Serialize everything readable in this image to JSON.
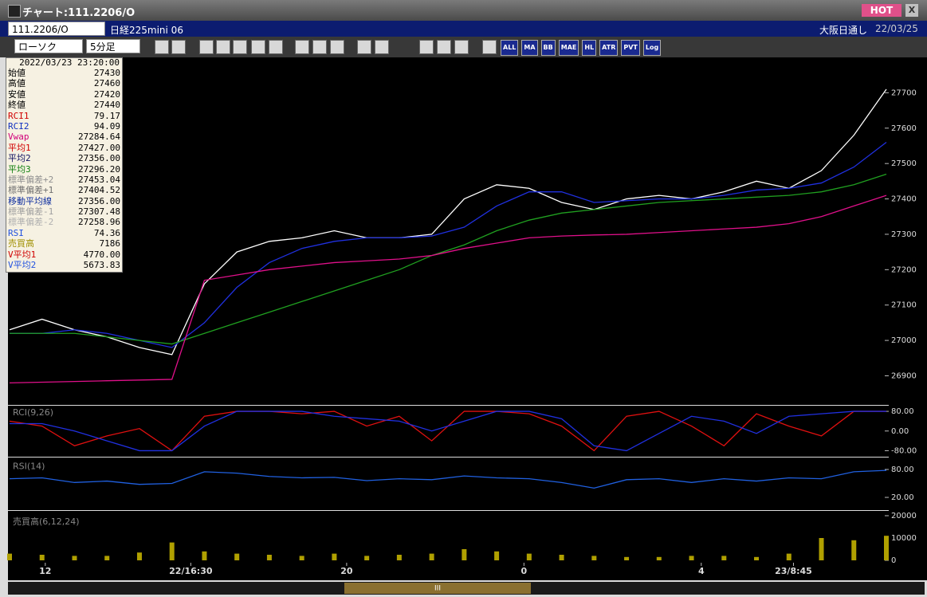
{
  "window": {
    "title": "チャート:111.2206/O",
    "badge": "HOT",
    "close": "X"
  },
  "header": {
    "code": "111.2206/O",
    "name": "日経225mini 06",
    "session": "大阪日通し",
    "date": "22/03/25"
  },
  "toolbar": {
    "chart_style": "ローソク",
    "interval": "5分足",
    "icons": [
      "ALL",
      "MA",
      "BB",
      "MAE",
      "HL",
      "ATR",
      "PVT",
      "Log"
    ]
  },
  "info_panel": {
    "datetime": "2022/03/23 23:20:00",
    "rows": [
      {
        "label": "始値",
        "value": "27430",
        "color": "#000000"
      },
      {
        "label": "高値",
        "value": "27460",
        "color": "#000000"
      },
      {
        "label": "安値",
        "value": "27420",
        "color": "#000000"
      },
      {
        "label": "終値",
        "value": "27440",
        "color": "#000000"
      },
      {
        "label": "RCI1",
        "value": "79.17",
        "color": "#d00000"
      },
      {
        "label": "RCI2",
        "value": "94.09",
        "color": "#1030c0"
      },
      {
        "label": "Vwap",
        "value": "27284.64",
        "color": "#d0007a"
      },
      {
        "label": "平均1",
        "value": "27427.00",
        "color": "#d00000"
      },
      {
        "label": "平均2",
        "value": "27356.00",
        "color": "#101060"
      },
      {
        "label": "平均3",
        "value": "27296.20",
        "color": "#108010"
      },
      {
        "label": "標準偏差+2",
        "value": "27453.04",
        "color": "#909090"
      },
      {
        "label": "標準偏差+1",
        "value": "27404.52",
        "color": "#707070"
      },
      {
        "label": "移動平均線",
        "value": "27356.00",
        "color": "#1030a0"
      },
      {
        "label": "標準偏差-1",
        "value": "27307.48",
        "color": "#a0a0a0"
      },
      {
        "label": "標準偏差-2",
        "value": "27258.96",
        "color": "#b0b0b0"
      },
      {
        "label": "RSI",
        "value": "74.36",
        "color": "#2050e0"
      },
      {
        "label": "売買高",
        "value": "7186",
        "color": "#a09000"
      },
      {
        "label": "V平均1",
        "value": "4770.00",
        "color": "#d00000"
      },
      {
        "label": "V平均2",
        "value": "5673.83",
        "color": "#2050e0"
      }
    ]
  },
  "chart_data": [
    {
      "type": "line",
      "x": [
        0,
        1,
        2,
        3,
        4,
        5,
        6,
        7,
        8,
        9,
        10,
        11,
        12,
        13,
        14,
        15,
        16,
        17,
        18,
        19,
        20,
        21,
        22,
        23,
        24,
        25,
        26,
        27
      ],
      "xlim": [
        0,
        27
      ],
      "ylim": [
        26820,
        27800
      ],
      "yticks": [
        26900,
        27000,
        27100,
        27200,
        27300,
        27400,
        27500,
        27600,
        27700
      ],
      "series": [
        {
          "color": "#ffffff",
          "values": [
            27030,
            27060,
            27030,
            27010,
            26980,
            26960,
            27160,
            27250,
            27280,
            27290,
            27310,
            27290,
            27290,
            27300,
            27400,
            27440,
            27430,
            27390,
            27370,
            27400,
            27410,
            27400,
            27420,
            27450,
            27430,
            27480,
            27580,
            27710
          ]
        },
        {
          "color": "#2030e0",
          "values": [
            27020,
            27020,
            27030,
            27020,
            27000,
            26980,
            27050,
            27150,
            27220,
            27260,
            27280,
            27290,
            27290,
            27295,
            27320,
            27380,
            27420,
            27420,
            27390,
            27395,
            27400,
            27400,
            27410,
            27425,
            27430,
            27445,
            27490,
            27560
          ]
        },
        {
          "color": "#20a020",
          "values": [
            27020,
            27020,
            27020,
            27010,
            27000,
            26990,
            27020,
            27050,
            27080,
            27110,
            27140,
            27170,
            27200,
            27240,
            27270,
            27310,
            27340,
            27360,
            27370,
            27380,
            27390,
            27395,
            27400,
            27405,
            27410,
            27420,
            27440,
            27470
          ]
        },
        {
          "color": "#e0108a",
          "values": [
            26880,
            26882,
            26884,
            26886,
            26888,
            26890,
            27170,
            27185,
            27200,
            27210,
            27220,
            27225,
            27230,
            27240,
            27260,
            27275,
            27290,
            27295,
            27298,
            27300,
            27305,
            27310,
            27315,
            27320,
            27330,
            27350,
            27380,
            27410
          ]
        }
      ]
    },
    {
      "type": "line",
      "title": "RCI(9,26)",
      "x": [
        0,
        1,
        2,
        3,
        4,
        5,
        6,
        7,
        8,
        9,
        10,
        11,
        12,
        13,
        14,
        15,
        16,
        17,
        18,
        19,
        20,
        21,
        22,
        23,
        24,
        25,
        26,
        27
      ],
      "xlim": [
        0,
        27
      ],
      "ylim": [
        -100,
        100
      ],
      "yticks": [
        {
          "value": 80,
          "label": "80.00"
        },
        {
          "value": 0,
          "label": "0.00"
        },
        {
          "value": -80,
          "label": "-80.00"
        }
      ],
      "series": [
        {
          "color": "#e01010",
          "values": [
            40,
            20,
            -60,
            -20,
            10,
            -80,
            60,
            80,
            80,
            70,
            80,
            20,
            60,
            -40,
            80,
            80,
            70,
            20,
            -80,
            60,
            80,
            20,
            -60,
            70,
            20,
            -20,
            80,
            80
          ]
        },
        {
          "color": "#2030e0",
          "values": [
            30,
            30,
            0,
            -40,
            -80,
            -80,
            20,
            80,
            80,
            80,
            60,
            50,
            40,
            0,
            40,
            80,
            80,
            50,
            -60,
            -80,
            -10,
            60,
            40,
            -10,
            60,
            70,
            80,
            80
          ]
        }
      ]
    },
    {
      "type": "line",
      "title": "RSI(14)",
      "x": [
        0,
        1,
        2,
        3,
        4,
        5,
        6,
        7,
        8,
        9,
        10,
        11,
        12,
        13,
        14,
        15,
        16,
        17,
        18,
        19,
        20,
        21,
        22,
        23,
        24,
        25,
        26,
        27
      ],
      "xlim": [
        0,
        27
      ],
      "ylim": [
        0,
        100
      ],
      "yticks": [
        {
          "value": 80,
          "label": "80.00"
        },
        {
          "value": 20,
          "label": "20.00"
        }
      ],
      "series": [
        {
          "color": "#2060e0",
          "values": [
            60,
            62,
            52,
            55,
            48,
            50,
            75,
            72,
            65,
            62,
            63,
            56,
            60,
            58,
            66,
            62,
            60,
            52,
            40,
            58,
            60,
            52,
            60,
            55,
            62,
            60,
            75,
            78
          ]
        }
      ]
    },
    {
      "type": "bar",
      "title": "売買高(6,12,24)",
      "x": [
        0,
        1,
        2,
        3,
        4,
        5,
        6,
        7,
        8,
        9,
        10,
        11,
        12,
        13,
        14,
        15,
        16,
        17,
        18,
        19,
        20,
        21,
        22,
        23,
        24,
        25,
        26,
        27
      ],
      "xlim": [
        0,
        27
      ],
      "ylim": [
        0,
        20000
      ],
      "yticks": [
        0,
        10000,
        20000
      ],
      "color": "#b0a000",
      "values": [
        3000,
        2500,
        2000,
        2000,
        3500,
        8000,
        4000,
        3000,
        2500,
        2000,
        3000,
        2000,
        2500,
        3000,
        5000,
        4000,
        3000,
        2500,
        2000,
        1500,
        1500,
        2000,
        2000,
        1500,
        3000,
        10000,
        9000,
        11000
      ],
      "xticks": [
        {
          "value": 1.1,
          "label": "12"
        },
        {
          "value": 5.58,
          "label": "22/16:30"
        },
        {
          "value": 10.38,
          "label": "20"
        },
        {
          "value": 15.84,
          "label": "0"
        },
        {
          "value": 21.3,
          "label": "4"
        },
        {
          "value": 24.14,
          "label": "23/8:45"
        }
      ]
    }
  ],
  "scrollbar": {
    "label": "III"
  }
}
